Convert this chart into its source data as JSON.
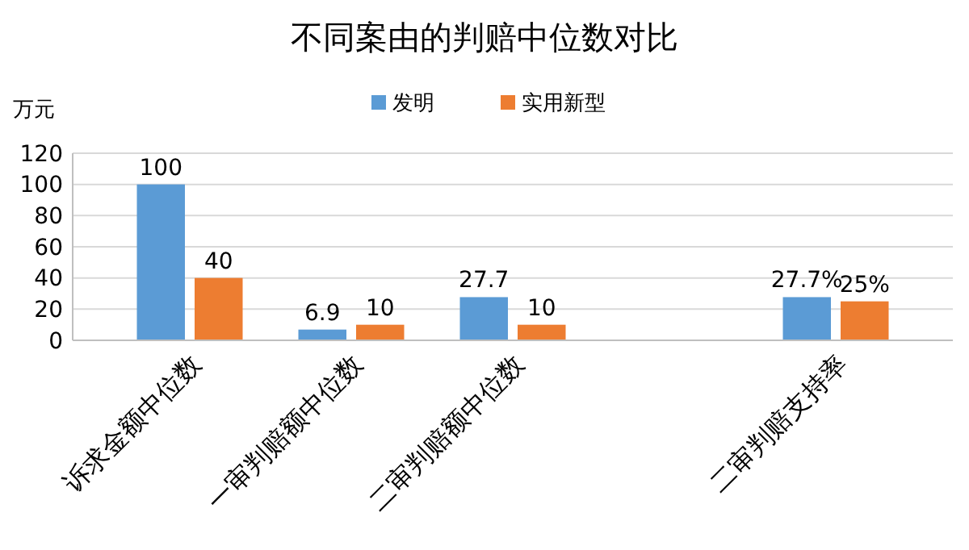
{
  "chart_data": {
    "type": "bar",
    "title": "不同案由的判赔中位数对比",
    "ylabel": "万元",
    "categories": [
      "诉求金额中位数",
      "一审判赔额中位数",
      "二审判赔额中位数",
      null,
      "二审判赔支持率"
    ],
    "series": [
      {
        "name": "发明",
        "color": "#5b9bd5",
        "values": [
          100,
          6.9,
          27.7,
          null,
          27.7
        ],
        "value_labels": [
          "100",
          "6.9",
          "27.7",
          null,
          "27.7%"
        ]
      },
      {
        "name": "实用新型",
        "color": "#ed7d31",
        "values": [
          40,
          10,
          10,
          null,
          25
        ],
        "value_labels": [
          "40",
          "10",
          "10",
          null,
          "25%"
        ]
      }
    ],
    "ylim": [
      0,
      120
    ],
    "yticks": [
      0,
      20,
      40,
      60,
      80,
      100,
      120
    ],
    "grid": "y",
    "legend": "top"
  }
}
